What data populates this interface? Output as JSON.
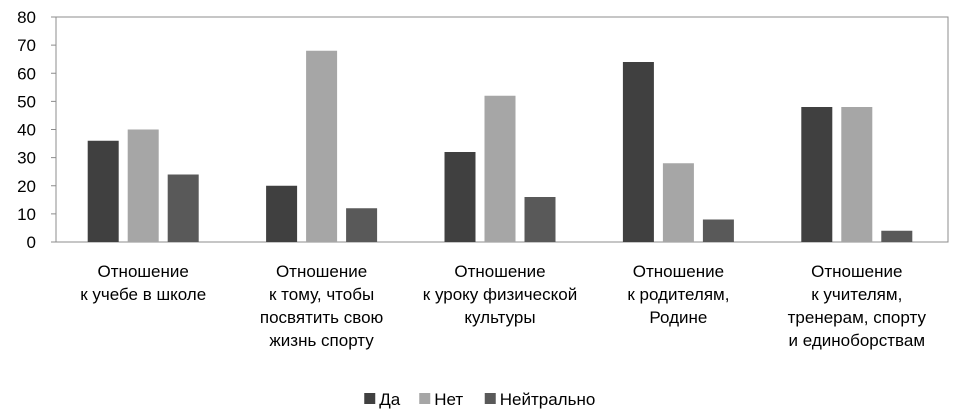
{
  "chart_data": {
    "type": "bar",
    "categories": [
      [
        "Отношение",
        "к учебе в школе"
      ],
      [
        "Отношение",
        "к тому, чтобы",
        "посвятить свою",
        "жизнь спорту"
      ],
      [
        "Отношение",
        "к уроку физической",
        "культуры"
      ],
      [
        "Отношение",
        "к родителям,",
        "Родине"
      ],
      [
        "Отношение",
        "к учителям,",
        "тренерам, спорту",
        "и единоборствам"
      ]
    ],
    "series": [
      {
        "name": "Да",
        "values": [
          36,
          20,
          32,
          64,
          48
        ],
        "color": "#404040"
      },
      {
        "name": "Нет",
        "values": [
          40,
          68,
          52,
          28,
          48
        ],
        "color": "#a6a6a6"
      },
      {
        "name": "Нейтрально",
        "values": [
          24,
          12,
          16,
          8,
          4
        ],
        "color": "#595959"
      }
    ],
    "ylim": [
      0,
      80
    ],
    "yticks": [
      0,
      10,
      20,
      30,
      40,
      50,
      60,
      70,
      80
    ],
    "grid": false,
    "legend_position": "bottom"
  }
}
